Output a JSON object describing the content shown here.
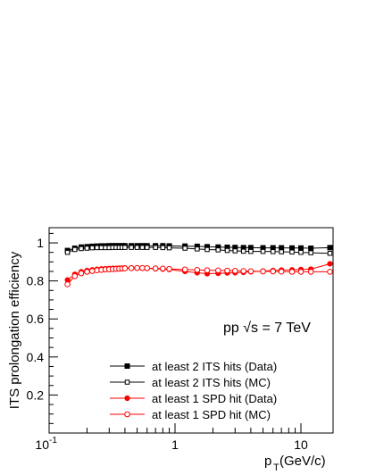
{
  "chart_data": {
    "type": "scatter",
    "title": "",
    "annotation": "pp √s = 7 TeV",
    "xlabel": "p_T (GeV/c)",
    "xlabel_main": "p",
    "xlabel_sub": "T",
    "xlabel_unit": " (GeV/c)",
    "ylabel": "ITS prolongation efficiency",
    "xscale": "log",
    "xlim": [
      0.1,
      18
    ],
    "ylim": [
      0.0,
      1.08
    ],
    "grid": false,
    "legend_position": "bottom-center",
    "x_tick_labels": [
      {
        "value": 0.1,
        "base": "10",
        "exp": "-1"
      },
      {
        "value": 1,
        "base": "1",
        "exp": ""
      },
      {
        "value": 10,
        "base": "10",
        "exp": ""
      }
    ],
    "y_tick_labels": [
      {
        "value": 0.2,
        "label": "0.2"
      },
      {
        "value": 0.4,
        "label": "0.4"
      },
      {
        "value": 0.6,
        "label": "0.6"
      },
      {
        "value": 0.8,
        "label": "0.8"
      },
      {
        "value": 1.0,
        "label": "1"
      }
    ],
    "x": [
      0.14,
      0.16,
      0.18,
      0.2,
      0.22,
      0.24,
      0.26,
      0.28,
      0.3,
      0.32,
      0.34,
      0.36,
      0.38,
      0.4,
      0.45,
      0.5,
      0.55,
      0.6,
      0.7,
      0.8,
      0.9,
      1.2,
      1.5,
      1.8,
      2.2,
      2.6,
      3.0,
      3.5,
      4.0,
      5.0,
      6.0,
      7.0,
      8.5,
      10.0,
      12.0,
      17.0
    ],
    "series": [
      {
        "name": "at least 2 ITS hits (Data)",
        "color": "#000000",
        "marker": "square-filled",
        "values": [
          0.96,
          0.972,
          0.978,
          0.98,
          0.982,
          0.983,
          0.984,
          0.984,
          0.985,
          0.985,
          0.985,
          0.985,
          0.985,
          0.985,
          0.985,
          0.985,
          0.985,
          0.985,
          0.985,
          0.985,
          0.984,
          0.983,
          0.982,
          0.98,
          0.978,
          0.977,
          0.976,
          0.975,
          0.975,
          0.974,
          0.974,
          0.974,
          0.973,
          0.973,
          0.972,
          0.975
        ]
      },
      {
        "name": "at least 2 ITS hits (MC)",
        "color": "#000000",
        "marker": "square-open",
        "values": [
          0.95,
          0.965,
          0.97,
          0.972,
          0.974,
          0.975,
          0.975,
          0.975,
          0.975,
          0.976,
          0.976,
          0.976,
          0.976,
          0.976,
          0.976,
          0.976,
          0.976,
          0.976,
          0.976,
          0.975,
          0.974,
          0.972,
          0.968,
          0.965,
          0.963,
          0.96,
          0.958,
          0.956,
          0.955,
          0.955,
          0.954,
          0.953,
          0.952,
          0.95,
          0.948,
          0.945
        ]
      },
      {
        "name": "at least 1 SPD hit (Data)",
        "color": "#ff0000",
        "marker": "circle-filled",
        "values": [
          0.805,
          0.835,
          0.848,
          0.855,
          0.858,
          0.861,
          0.863,
          0.864,
          0.865,
          0.866,
          0.866,
          0.867,
          0.867,
          0.868,
          0.868,
          0.868,
          0.867,
          0.866,
          0.864,
          0.862,
          0.86,
          0.85,
          0.843,
          0.838,
          0.84,
          0.842,
          0.843,
          0.845,
          0.848,
          0.852,
          0.855,
          0.857,
          0.858,
          0.86,
          0.862,
          0.89
        ]
      },
      {
        "name": "at least 1 SPD hit (MC)",
        "color": "#ff0000",
        "marker": "circle-open",
        "values": [
          0.782,
          0.825,
          0.84,
          0.848,
          0.852,
          0.856,
          0.858,
          0.86,
          0.861,
          0.862,
          0.863,
          0.864,
          0.865,
          0.866,
          0.867,
          0.868,
          0.868,
          0.867,
          0.866,
          0.865,
          0.863,
          0.86,
          0.858,
          0.856,
          0.855,
          0.854,
          0.853,
          0.852,
          0.851,
          0.85,
          0.85,
          0.849,
          0.848,
          0.848,
          0.848,
          0.848
        ]
      }
    ]
  }
}
